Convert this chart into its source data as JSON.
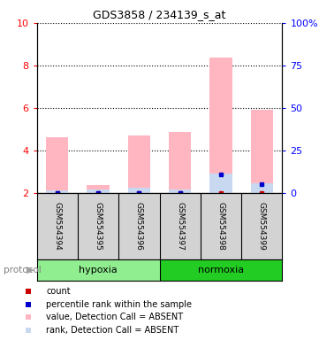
{
  "title": "GDS3858 / 234139_s_at",
  "samples": [
    "GSM554394",
    "GSM554395",
    "GSM554396",
    "GSM554397",
    "GSM554398",
    "GSM554399"
  ],
  "value_bars": [
    4.6,
    2.35,
    4.7,
    4.85,
    8.35,
    5.9
  ],
  "rank_bars": [
    2.1,
    2.15,
    2.25,
    2.15,
    2.9,
    2.45
  ],
  "count_dots_y": [
    2.0,
    2.0,
    2.0,
    2.0,
    2.0,
    2.0
  ],
  "percentile_dots_y": [
    2.0,
    2.0,
    2.0,
    2.0,
    2.85,
    2.4
  ],
  "ylim_left": [
    2,
    10
  ],
  "ylim_right": [
    0,
    100
  ],
  "yticks_left": [
    2,
    4,
    6,
    8,
    10
  ],
  "yticks_right": [
    0,
    25,
    50,
    75,
    100
  ],
  "bar_color_value": "#FFB6C1",
  "bar_color_rank": "#C8D8F0",
  "dot_color_count": "#CC0000",
  "dot_color_percentile": "#0000CC",
  "label_box_color": "#D3D3D3",
  "hypoxia_color": "#90EE90",
  "normoxia_color": "#22CC22",
  "legend_items": [
    {
      "color": "#CC0000",
      "label": "count"
    },
    {
      "color": "#0000CC",
      "label": "percentile rank within the sample"
    },
    {
      "color": "#FFB6C1",
      "label": "value, Detection Call = ABSENT"
    },
    {
      "color": "#C8D8F0",
      "label": "rank, Detection Call = ABSENT"
    }
  ]
}
